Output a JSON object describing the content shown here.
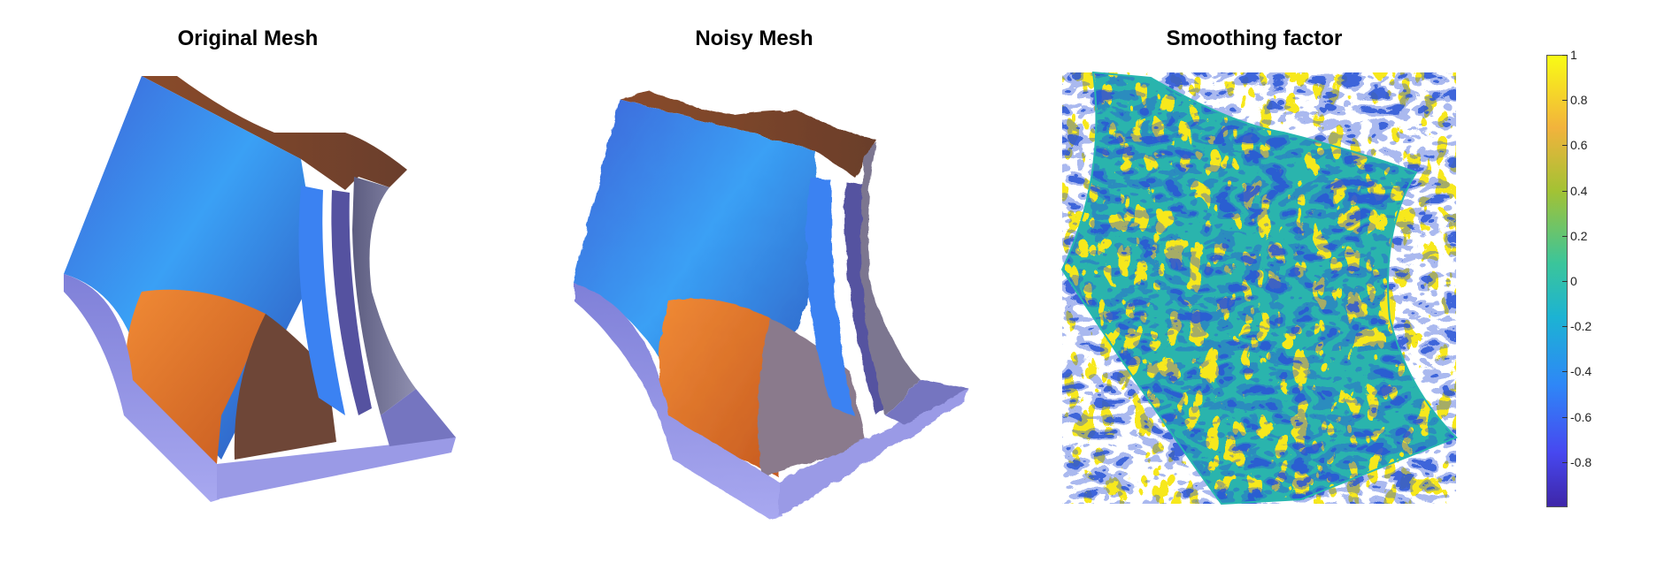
{
  "titles": {
    "original": "Original Mesh",
    "noisy": "Noisy Mesh",
    "smoothing": "Smoothing factor"
  },
  "colorbar": {
    "ticks": [
      {
        "value": 1,
        "label": "1"
      },
      {
        "value": 0.8,
        "label": "0.8"
      },
      {
        "value": 0.6,
        "label": "0.6"
      },
      {
        "value": 0.4,
        "label": "0.4"
      },
      {
        "value": 0.2,
        "label": "0.2"
      },
      {
        "value": 0,
        "label": "0"
      },
      {
        "value": -0.2,
        "label": "-0.2"
      },
      {
        "value": -0.4,
        "label": "-0.4"
      },
      {
        "value": -0.6,
        "label": "-0.6"
      },
      {
        "value": -0.8,
        "label": "-0.8"
      }
    ],
    "range": [
      -1,
      1
    ],
    "colormap": "parula"
  },
  "colors": {
    "mesh_blue": "#3a7ef0",
    "mesh_orange": "#e0702a",
    "mesh_brown": "#7a4a36",
    "mesh_lavender": "#8f8fe0",
    "smooth_yellow": "#f5e61a",
    "smooth_teal": "#26b8b0",
    "smooth_blue": "#3b5bd9"
  }
}
